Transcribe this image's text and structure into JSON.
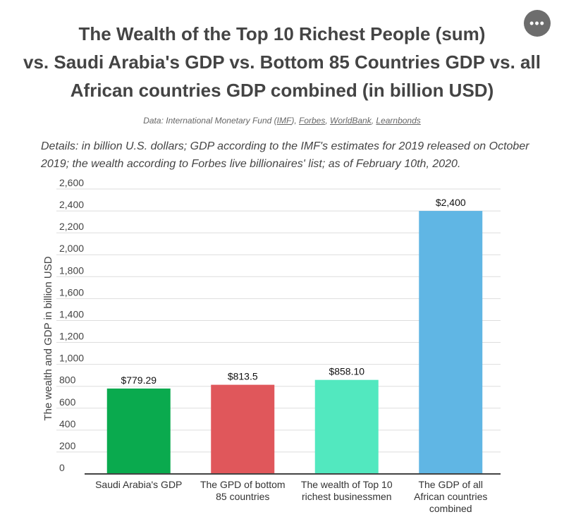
{
  "header": {
    "title_lines": [
      "The Wealth of the Top 10 Richest People (sum)",
      "vs. Saudi Arabia's GDP vs. Bottom 85 Countries GDP vs. all",
      "African countries GDP combined (in billion USD)"
    ],
    "menu_label": "•••"
  },
  "source": {
    "prefix": "Data: International Monetary Fund (",
    "links": [
      "IMF",
      "Forbes",
      "WorldBank",
      "Learnbonds"
    ],
    "sep1": "), ",
    "sep2": ", ",
    "sep3": ", "
  },
  "details": "Details: in billion U.S. dollars; GDP according to the IMF's estimates for 2019 released on October 2019; the wealth according to Forbes live billionaires' list; as of February 10th, 2020.",
  "chart_data": {
    "type": "bar",
    "title": "",
    "xlabel": "",
    "ylabel": "The wealth and GDP in billion USD",
    "ylim": [
      0,
      2600
    ],
    "yticks": [
      "0",
      "200",
      "400",
      "600",
      "800",
      "1,000",
      "1,200",
      "1,400",
      "1,600",
      "1,800",
      "2,000",
      "2,200",
      "2,400",
      "2,600"
    ],
    "ytick_values": [
      0,
      200,
      400,
      600,
      800,
      1000,
      1200,
      1400,
      1600,
      1800,
      2000,
      2200,
      2400,
      2600
    ],
    "grid": true,
    "categories": [
      [
        "Saudi Arabia's GDP"
      ],
      [
        "The GPD of bottom",
        "85 countries"
      ],
      [
        "The wealth of Top 10",
        "richest businessmen"
      ],
      [
        "The GDP of all",
        "African countries",
        "combined"
      ]
    ],
    "values": [
      779.29,
      813.5,
      858.1,
      2400
    ],
    "value_labels": [
      "$779.29",
      "$813.5",
      "$858.10",
      "$2,400"
    ],
    "colors": [
      "#0aaa4e",
      "#e0575b",
      "#52e8bf",
      "#60b6e4"
    ]
  }
}
